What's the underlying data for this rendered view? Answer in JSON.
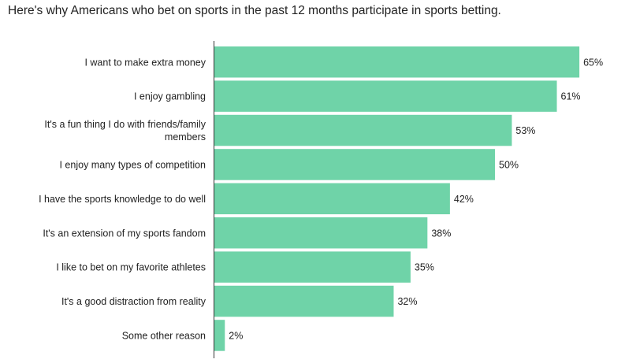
{
  "chart_data": {
    "type": "bar",
    "orientation": "horizontal",
    "title": "Here's why Americans who bet on sports in the past 12 months participate in sports betting.",
    "categories": [
      "I want to make extra money",
      "I enjoy gambling",
      "It's a fun thing I do with friends/family members",
      "I enjoy many types of competition",
      "I have the sports knowledge to do well",
      "It's an extension of my sports fandom",
      "I like to bet on my favorite athletes",
      "It's a good distraction from reality",
      "Some other reason"
    ],
    "label_lines": [
      [
        "I want to make extra money"
      ],
      [
        "I enjoy gambling"
      ],
      [
        "It's a fun thing I do with friends/family",
        "members"
      ],
      [
        "I enjoy many types of competition"
      ],
      [
        "I have the sports knowledge to do well"
      ],
      [
        "It's an extension of my sports fandom"
      ],
      [
        "I like to bet on my favorite athletes"
      ],
      [
        "It's a good distraction from reality"
      ],
      [
        "Some other reason"
      ]
    ],
    "values": [
      65,
      61,
      53,
      50,
      42,
      38,
      35,
      32,
      2
    ],
    "value_labels": [
      "65%",
      "61%",
      "53%",
      "50%",
      "42%",
      "38%",
      "35%",
      "32%",
      "2%"
    ],
    "unit": "%",
    "xlim": [
      0,
      100
    ],
    "grid": false,
    "legend": "none",
    "bar_color": "#6fd3a8"
  }
}
